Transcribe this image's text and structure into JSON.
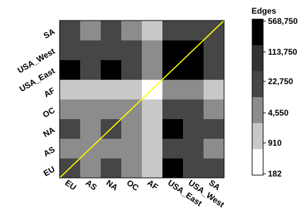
{
  "chart_data": {
    "type": "heatmap",
    "x_categories": [
      "EU",
      "AS",
      "NA",
      "OC",
      "AF",
      "USA_East",
      "USA_West",
      "SA"
    ],
    "y_categories": [
      "EU",
      "AS",
      "NA",
      "OC",
      "AF",
      "USA_East",
      "USA_West",
      "SA"
    ],
    "scale_bins": [
      182,
      910,
      4550,
      22750,
      113750,
      568750
    ],
    "legend_title": "Edges",
    "legend_labels": [
      "568,750",
      "113,750",
      "22,750",
      "4,550",
      "910",
      "182"
    ],
    "bin_colors": [
      "#ffffff",
      "#c8c8c8",
      "#8c8c8c",
      "#464646",
      "#323232",
      "#000000"
    ],
    "diagonal_color": "#ffff00",
    "matrix_bins": [
      [
        3,
        2,
        3,
        2,
        1,
        5,
        3,
        3
      ],
      [
        2,
        2,
        2,
        2,
        1,
        3,
        3,
        2
      ],
      [
        3,
        2,
        3,
        2,
        1,
        5,
        3,
        3
      ],
      [
        2,
        2,
        2,
        2,
        1,
        3,
        3,
        2
      ],
      [
        1,
        1,
        1,
        1,
        0,
        2,
        2,
        1
      ],
      [
        5,
        3,
        5,
        3,
        2,
        5,
        5,
        3
      ],
      [
        3,
        3,
        3,
        3,
        2,
        5,
        5,
        3
      ],
      [
        3,
        2,
        3,
        2,
        1,
        3,
        3,
        3
      ]
    ]
  }
}
